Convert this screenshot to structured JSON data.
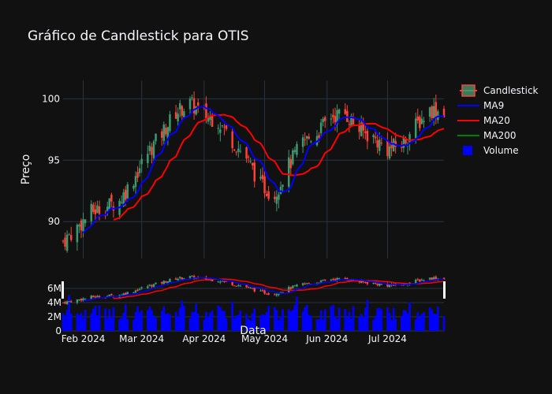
{
  "chart_data": {
    "type": "candlestick",
    "title": "Gráfico de Candlestick para OTIS",
    "xlabel": "Data",
    "ylabel": "Preço",
    "x_ticks": [
      "Feb 2024",
      "Mar 2024",
      "Apr 2024",
      "May 2024",
      "Jun 2024",
      "Jul 2024"
    ],
    "y_ticks": [
      "90",
      "95",
      "100"
    ],
    "ylim": [
      87,
      101.5
    ],
    "volume_ticks": [
      "0",
      "2M",
      "4M",
      "6M"
    ],
    "volume_ylim": [
      0,
      8000000
    ],
    "legend": [
      {
        "name": "Candlestick",
        "color": "#2ca02c",
        "kind": "candle"
      },
      {
        "name": "MA9",
        "color": "#0000ff",
        "kind": "line"
      },
      {
        "name": "MA20",
        "color": "#ff0000",
        "kind": "line"
      },
      {
        "name": "MA200",
        "color": "#008000",
        "kind": "line"
      },
      {
        "name": "Volume",
        "color": "#0000ff",
        "kind": "bar"
      }
    ],
    "colors": {
      "increasing": "#3d9970",
      "decreasing": "#ff4136",
      "ma9": "#0000ff",
      "ma20": "#ff0000",
      "volume": "#0000ff"
    },
    "date_range": [
      "2024-01-22",
      "2024-07-29"
    ],
    "close_anchors": [
      [
        "2024-01-22",
        88.4
      ],
      [
        "2024-01-29",
        89.5
      ],
      [
        "2024-02-05",
        90.8
      ],
      [
        "2024-02-12",
        91.2
      ],
      [
        "2024-02-19",
        91.7
      ],
      [
        "2024-02-26",
        93.5
      ],
      [
        "2024-03-04",
        95.6
      ],
      [
        "2024-03-11",
        97.2
      ],
      [
        "2024-03-18",
        98.9
      ],
      [
        "2024-03-25",
        99.6
      ],
      [
        "2024-04-01",
        98.7
      ],
      [
        "2024-04-08",
        98.2
      ],
      [
        "2024-04-15",
        96.6
      ],
      [
        "2024-04-22",
        95.2
      ],
      [
        "2024-04-29",
        93.0
      ],
      [
        "2024-05-06",
        92.2
      ],
      [
        "2024-05-13",
        94.6
      ],
      [
        "2024-05-20",
        96.5
      ],
      [
        "2024-05-27",
        97.2
      ],
      [
        "2024-06-03",
        98.6
      ],
      [
        "2024-06-10",
        98.8
      ],
      [
        "2024-06-17",
        97.5
      ],
      [
        "2024-06-24",
        96.8
      ],
      [
        "2024-07-01",
        95.9
      ],
      [
        "2024-07-08",
        96.3
      ],
      [
        "2024-07-15",
        97.8
      ],
      [
        "2024-07-22",
        99.1
      ],
      [
        "2024-07-29",
        99.0
      ]
    ]
  }
}
